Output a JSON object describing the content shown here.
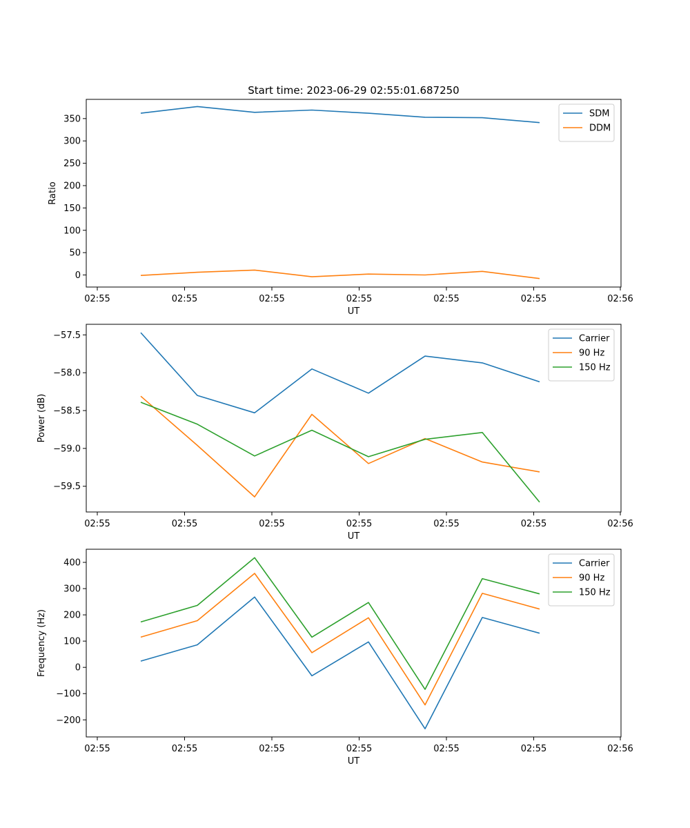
{
  "figure": {
    "title": "Start time: 2023-06-29 02:55:01.687250"
  },
  "chart_data": [
    {
      "type": "line",
      "title": "Start time: 2023-06-29 02:55:01.687250",
      "xlabel": "UT",
      "ylabel": "Ratio",
      "x_tick_labels": [
        "02:55",
        "02:55",
        "02:55",
        "02:55",
        "02:55",
        "02:55",
        "02:55",
        "02:56"
      ],
      "y_ticks": [
        0,
        50,
        100,
        150,
        200,
        250,
        300,
        350
      ],
      "ylim": [
        -27,
        393
      ],
      "legend_position": "top-right",
      "series": [
        {
          "name": "SDM",
          "color": "#1f77b4",
          "values": [
            362,
            377,
            364,
            369,
            362,
            353,
            352,
            341
          ]
        },
        {
          "name": "DDM",
          "color": "#ff7f0e",
          "values": [
            -1,
            6,
            11,
            -4,
            2,
            0,
            8,
            -8
          ]
        }
      ]
    },
    {
      "type": "line",
      "xlabel": "UT",
      "ylabel": "Power (dB)",
      "x_tick_labels": [
        "02:55",
        "02:55",
        "02:55",
        "02:55",
        "02:55",
        "02:55",
        "02:55",
        "02:56"
      ],
      "y_ticks": [
        -57.5,
        -58.0,
        -58.5,
        -59.0,
        -59.5
      ],
      "y_tick_labels": [
        "−57.5",
        "−58.0",
        "−58.5",
        "−59.0",
        "−59.5"
      ],
      "ylim": [
        -59.84,
        -57.36
      ],
      "legend_position": "top-right",
      "series": [
        {
          "name": "Carrier",
          "color": "#1f77b4",
          "values": [
            -57.47,
            -58.3,
            -58.53,
            -57.95,
            -58.27,
            -57.78,
            -57.87,
            -58.12
          ]
        },
        {
          "name": "90 Hz",
          "color": "#ff7f0e",
          "values": [
            -58.31,
            -58.96,
            -59.64,
            -58.55,
            -59.2,
            -58.87,
            -59.18,
            -59.31
          ]
        },
        {
          "name": "150 Hz",
          "color": "#2ca02c",
          "values": [
            -58.39,
            -58.68,
            -59.1,
            -58.76,
            -59.11,
            -58.88,
            -58.79,
            -59.71
          ]
        }
      ]
    },
    {
      "type": "line",
      "xlabel": "UT",
      "ylabel": "Frequency (Hz)",
      "x_tick_labels": [
        "02:55",
        "02:55",
        "02:55",
        "02:55",
        "02:55",
        "02:55",
        "02:55",
        "02:56"
      ],
      "y_ticks": [
        400,
        300,
        200,
        100,
        0,
        -100,
        -200
      ],
      "y_tick_labels": [
        "400",
        "300",
        "200",
        "100",
        "0",
        "−100",
        "−200"
      ],
      "ylim": [
        -265,
        450
      ],
      "legend_position": "top-right",
      "series": [
        {
          "name": "Carrier",
          "color": "#1f77b4",
          "values": [
            24,
            86,
            268,
            -32,
            97,
            -234,
            190,
            130
          ]
        },
        {
          "name": "90 Hz",
          "color": "#ff7f0e",
          "values": [
            115,
            178,
            358,
            56,
            189,
            -143,
            282,
            222
          ]
        },
        {
          "name": "150 Hz",
          "color": "#2ca02c",
          "values": [
            173,
            236,
            418,
            115,
            247,
            -84,
            338,
            280
          ]
        }
      ]
    }
  ]
}
